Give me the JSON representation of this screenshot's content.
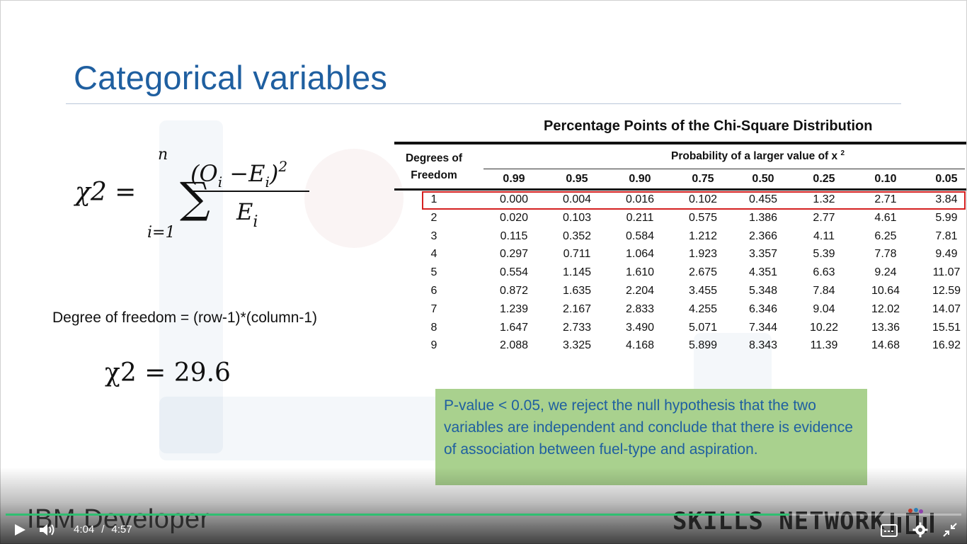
{
  "slide": {
    "title": "Categorical variables",
    "formula": {
      "lhs": "χ2 =",
      "sum_top": "n",
      "sum_bottom": "i=1",
      "numerator": "(O",
      "numerator_sub1": "i",
      "numerator_mid": " −E",
      "numerator_sub2": "i",
      "numerator_end": ")",
      "numerator_exp": "2",
      "denominator": "E",
      "denominator_sub": "i"
    },
    "degree_of_freedom": "Degree of freedom = (row-1)*(column-1)",
    "chi_value": "χ2 = 29.6",
    "note": "P-value < 0.05, we reject the null hypothesis that the two variables are independent and conclude that there is evidence of association between fuel-type and aspiration."
  },
  "table": {
    "title": "Percentage Points of the Chi-Square Distribution",
    "dof_header": [
      "Degrees of",
      "Freedom"
    ],
    "prob_header": "Probability of a larger value of x",
    "prob_header_exp": "2",
    "columns": [
      "0.99",
      "0.95",
      "0.90",
      "0.75",
      "0.50",
      "0.25",
      "0.10",
      "0.05"
    ],
    "rows": [
      {
        "df": "1",
        "values": [
          "0.000",
          "0.004",
          "0.016",
          "0.102",
          "0.455",
          "1.32",
          "2.71",
          "3.84"
        ]
      },
      {
        "df": "2",
        "values": [
          "0.020",
          "0.103",
          "0.211",
          "0.575",
          "1.386",
          "2.77",
          "4.61",
          "5.99"
        ]
      },
      {
        "df": "3",
        "values": [
          "0.115",
          "0.352",
          "0.584",
          "1.212",
          "2.366",
          "4.11",
          "6.25",
          "7.81"
        ]
      },
      {
        "df": "4",
        "values": [
          "0.297",
          "0.711",
          "1.064",
          "1.923",
          "3.357",
          "5.39",
          "7.78",
          "9.49"
        ]
      },
      {
        "df": "5",
        "values": [
          "0.554",
          "1.145",
          "1.610",
          "2.675",
          "4.351",
          "6.63",
          "9.24",
          "11.07"
        ]
      },
      {
        "df": "6",
        "values": [
          "0.872",
          "1.635",
          "2.204",
          "3.455",
          "5.348",
          "7.84",
          "10.64",
          "12.59"
        ]
      },
      {
        "df": "7",
        "values": [
          "1.239",
          "2.167",
          "2.833",
          "4.255",
          "6.346",
          "9.04",
          "12.02",
          "14.07"
        ]
      },
      {
        "df": "8",
        "values": [
          "1.647",
          "2.733",
          "3.490",
          "5.071",
          "7.344",
          "10.22",
          "13.36",
          "15.51"
        ]
      },
      {
        "df": "9",
        "values": [
          "2.088",
          "3.325",
          "4.168",
          "5.899",
          "8.343",
          "11.39",
          "14.68",
          "16.92"
        ]
      }
    ],
    "highlighted_row": "1",
    "highlight_color": "#d42020"
  },
  "player": {
    "brand_left": "IBM Developer",
    "brand_right": "SKILLS NETWORK",
    "current_time": "4:04",
    "separator": "/",
    "duration": "4:57",
    "progress_fraction": 0.82,
    "progress_color": "#2fbf71",
    "icons": [
      "play-icon",
      "volume-icon",
      "captions-icon",
      "gear-icon",
      "exit-fullscreen-icon"
    ]
  },
  "colors": {
    "title": "#1f5fa0",
    "note_background": "#a9d18e",
    "note_text": "#1f5fa0"
  }
}
